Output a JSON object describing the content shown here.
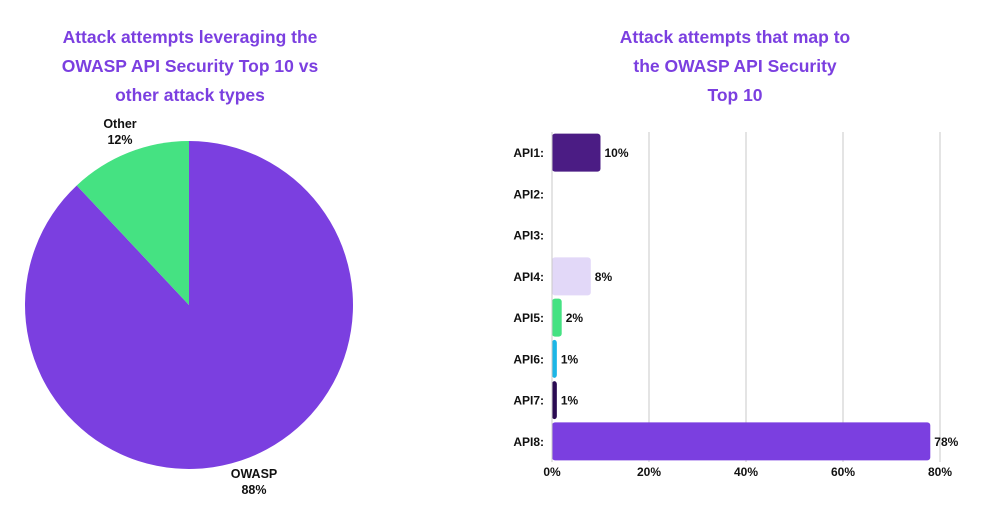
{
  "chart_data": [
    {
      "type": "pie",
      "title_lines": [
        "Attack attempts leveraging the",
        "OWASP API Security Top 10 vs",
        "other attack types"
      ],
      "slices": [
        {
          "label": "OWASP",
          "value": 88,
          "value_label": "88%",
          "color": "#7b3fe0"
        },
        {
          "label": "Other",
          "value": 12,
          "value_label": "12%",
          "color": "#45e282"
        }
      ]
    },
    {
      "type": "bar",
      "orientation": "horizontal",
      "title_lines": [
        "Attack attempts that map to",
        "the OWASP API Security",
        "Top 10"
      ],
      "categories": [
        "API1:",
        "API2:",
        "API3:",
        "API4:",
        "API5:",
        "API6:",
        "API7:",
        "API8:"
      ],
      "values": [
        10,
        null,
        null,
        8,
        2,
        1,
        1,
        78
      ],
      "value_labels": [
        "10%",
        "",
        "",
        "8%",
        "2%",
        "1%",
        "1%",
        "78%"
      ],
      "colors": [
        "#4b1c84",
        "#4b1c84",
        "#4b1c84",
        "#e2d8f8",
        "#45e282",
        "#1cb6e6",
        "#2a0b52",
        "#7b3fe0"
      ],
      "x_ticks": [
        "0%",
        "20%",
        "40%",
        "60%",
        "80%"
      ],
      "xlim": [
        0,
        80
      ],
      "grid": true
    }
  ]
}
